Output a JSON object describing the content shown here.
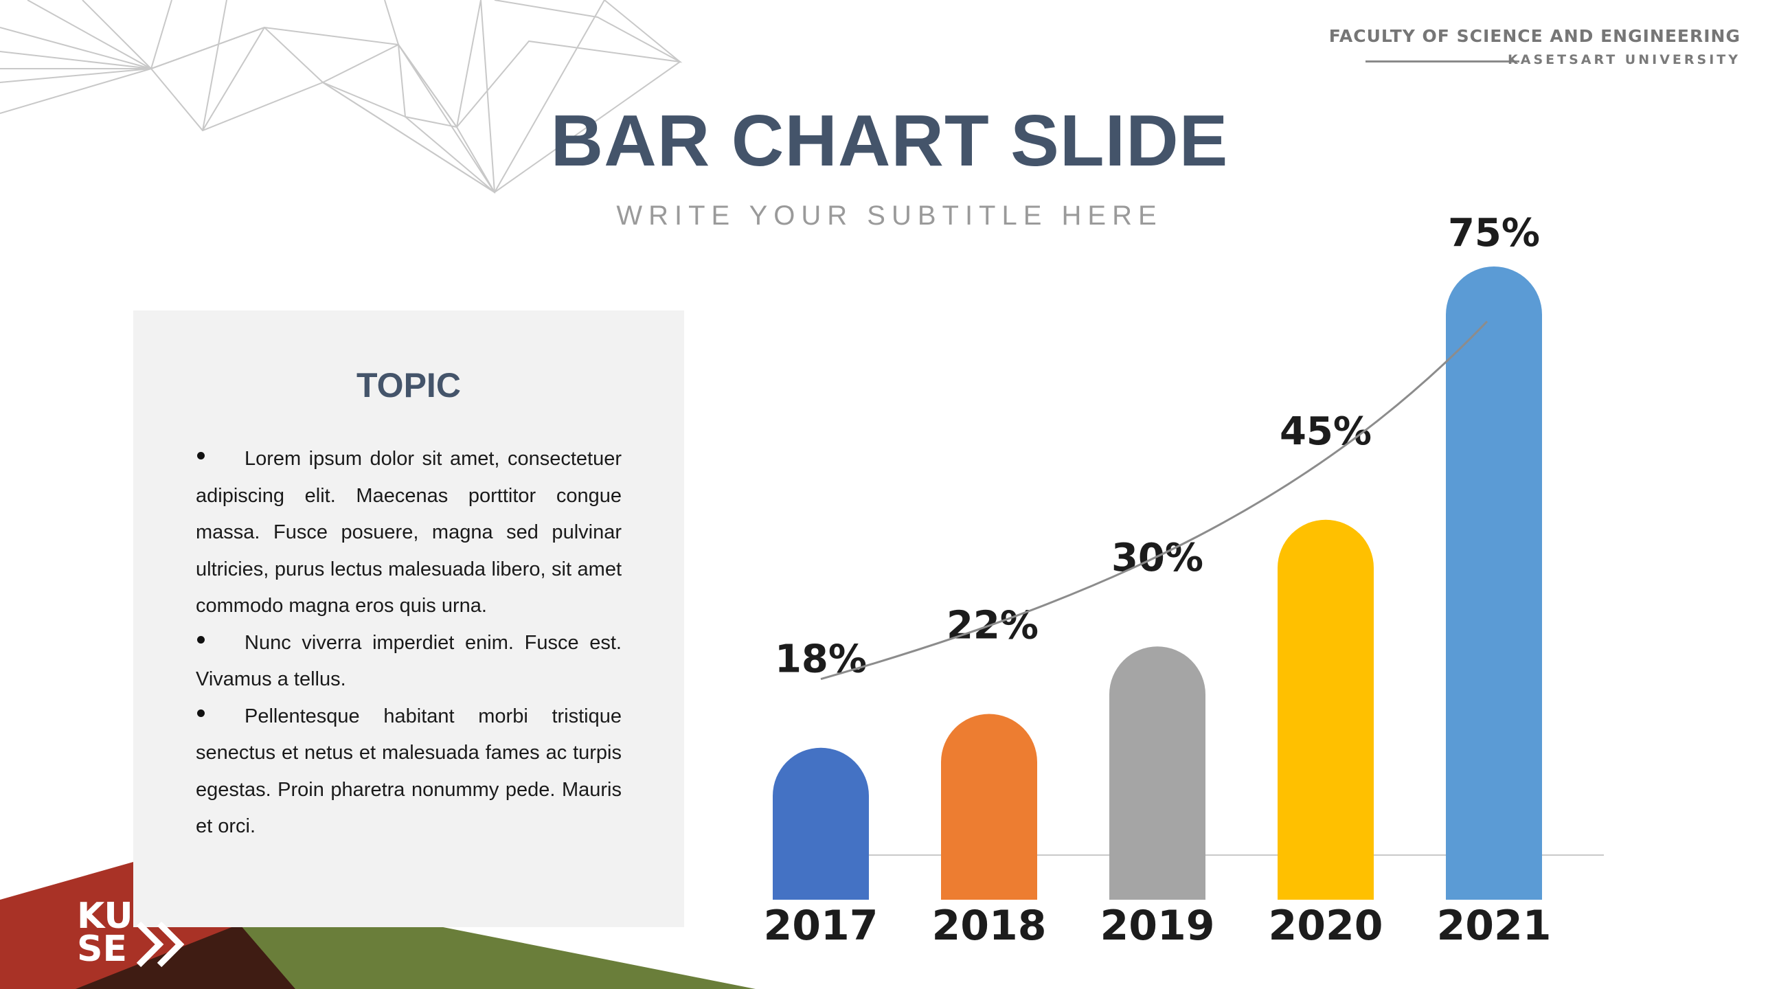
{
  "header": {
    "faculty": "FACULTY OF SCIENCE AND ENGINEERING",
    "university": "KASETSART UNIVERSITY"
  },
  "slide": {
    "title": "BAR CHART SLIDE",
    "subtitle": "WRITE YOUR SUBTITLE HERE"
  },
  "panel": {
    "topic": "TOPIC",
    "bullets": [
      "Lorem ipsum dolor sit amet, consectetuer adipiscing elit. Maecenas porttitor congue massa. Fusce posuere, magna sed pulvinar ultricies, purus lectus malesuada libero, sit amet commodo magna eros quis urna.",
      "Nunc viverra imperdiet enim. Fusce est. Vivamus a tellus.",
      "Pellentesque habitant morbi tristique senectus et netus et malesuada fames ac turpis egestas. Proin pharetra nonummy pede. Mauris et orci."
    ]
  },
  "logo": {
    "line1": "KU",
    "line2": "SE"
  },
  "chart_data": {
    "type": "bar",
    "categories": [
      "2017",
      "2018",
      "2019",
      "2020",
      "2021"
    ],
    "values": [
      18,
      22,
      30,
      45,
      75
    ],
    "value_labels": [
      "18%",
      "22%",
      "30%",
      "45%",
      "75%"
    ],
    "colors": [
      "#4472c4",
      "#ed7d31",
      "#a5a5a5",
      "#ffc000",
      "#5b9bd5"
    ],
    "bar_shape": "rounded-top",
    "trend_line": true,
    "grid": false,
    "legend": "none",
    "ylim": [
      0,
      75
    ]
  }
}
